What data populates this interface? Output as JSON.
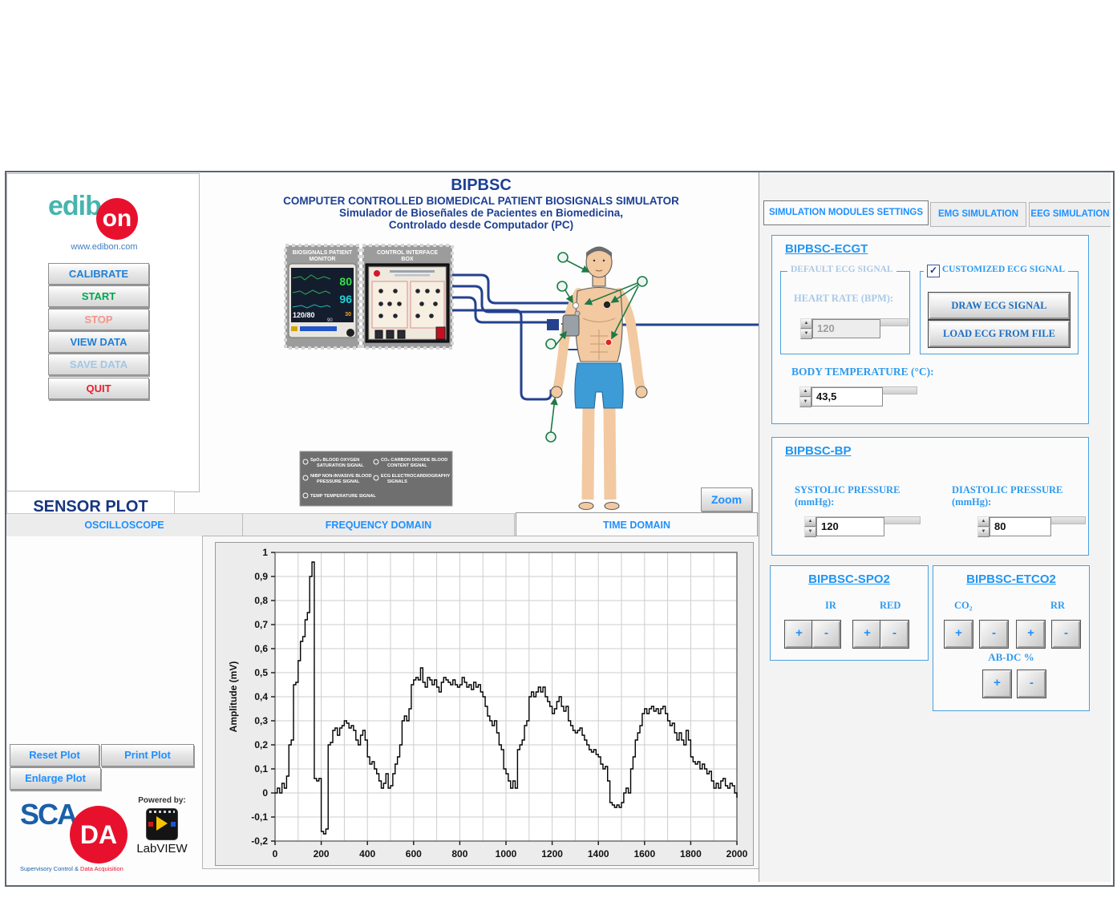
{
  "branding": {
    "logo_left": "edib",
    "logo_circle": "on",
    "website": "www.edibon.com"
  },
  "sidebar_buttons": [
    {
      "label": "CALIBRATE",
      "color": "#1e7fd6"
    },
    {
      "label": "START",
      "color": "#00a651"
    },
    {
      "label": "STOP",
      "color": "#f4948a"
    },
    {
      "label": "VIEW DATA",
      "color": "#1e7fd6"
    },
    {
      "label": "SAVE DATA",
      "color": "#9ec8e8"
    },
    {
      "label": "QUIT",
      "color": "#e8202a"
    }
  ],
  "header": {
    "title": "BIPBSC",
    "line1": "COMPUTER CONTROLLED BIOMEDICAL PATIENT BIOSIGNALS SIMULATOR",
    "line2": "Simulador de Bioseñales de Pacientes en Biomedicina,",
    "line3": "Controlado desde Computador (PC)"
  },
  "diagram": {
    "monitor_label_1": "BIOSIGNALS PATIENT",
    "monitor_label_2": "MONITOR",
    "box_label_1": "CONTROL INTERFACE",
    "box_label_2": "BOX",
    "monitor": {
      "hr": "80",
      "spo2": "96",
      "nibp": "120/80",
      "resp": "30",
      "small": "90"
    },
    "legend": [
      {
        "l1": "SpO₂  BLOOD OXYGEN",
        "l2": "SATURATION SIGNAL"
      },
      {
        "l1": "NIBP  NON-INVASIVE BLOOD",
        "l2": "PRESSURE SIGNAL"
      },
      {
        "l1": "TEMP  TEMPERATURE SIGNAL",
        "l2": ""
      },
      {
        "l1": "CO₂  CARBON DIOXIDE BLOOD",
        "l2": "CONTENT SIGNAL"
      },
      {
        "l1": "ECG  ELECTROCARDIOGRAPHY",
        "l2": "SIGNALS"
      }
    ],
    "zoom_button": "Zoom"
  },
  "plot_section": {
    "title": "SENSOR PLOT",
    "tabs": [
      {
        "label": "OSCILLOSCOPE"
      },
      {
        "label": "FREQUENCY DOMAIN"
      },
      {
        "label": "TIME DOMAIN"
      }
    ],
    "buttons": [
      {
        "label": "Reset Plot"
      },
      {
        "label": "Print Plot"
      },
      {
        "label": "Enlarge Plot"
      }
    ],
    "scada": {
      "sca": "SCA",
      "da": "DA",
      "sub_blue": "Supervisory Control &",
      "sub_red": " Data Acquisition"
    },
    "labview": {
      "powered": "Powered by:",
      "name": "LabVIEW"
    }
  },
  "chart_data": {
    "type": "line",
    "title": "",
    "xlabel": "Time (ms)",
    "ylabel": "Amplitude (mV)",
    "xlim": [
      0,
      2000
    ],
    "ylim": [
      -0.2,
      1
    ],
    "grid": true,
    "line_color": "#000000",
    "x_tick_labels": [
      "0",
      "200",
      "400",
      "600",
      "800",
      "1000",
      "1200",
      "1400",
      "1600",
      "1800",
      "2000"
    ],
    "y_tick_labels": [
      "1",
      "0,9",
      "0,8",
      "0,7",
      "0,6",
      "0,5",
      "0,4",
      "0,3",
      "0,2",
      "0,1",
      "0",
      "-0,1",
      "-0,2"
    ],
    "y_tick_values": [
      1,
      0.9,
      0.8,
      0.7,
      0.6,
      0.5,
      0.4,
      0.3,
      0.2,
      0.1,
      0,
      -0.1,
      -0.2
    ],
    "x_step": 10,
    "values": [
      0,
      0.02,
      0,
      0.04,
      0.02,
      0.07,
      0.2,
      0.22,
      0.45,
      0.46,
      0.55,
      0.63,
      0.65,
      0.72,
      0.75,
      0.9,
      0.96,
      0.06,
      0.05,
      0.06,
      -0.16,
      -0.17,
      -0.15,
      0.2,
      0.21,
      0.26,
      0.27,
      0.24,
      0.27,
      0.28,
      0.3,
      0.29,
      0.27,
      0.28,
      0.26,
      0.22,
      0.2,
      0.24,
      0.26,
      0.22,
      0.15,
      0.12,
      0.13,
      0.1,
      0.08,
      0.05,
      0.02,
      0.04,
      0.08,
      0.02,
      0.03,
      0.08,
      0.12,
      0.15,
      0.2,
      0.3,
      0.32,
      0.3,
      0.35,
      0.45,
      0.47,
      0.48,
      0.47,
      0.52,
      0.46,
      0.44,
      0.48,
      0.47,
      0.45,
      0.47,
      0.44,
      0.42,
      0.46,
      0.48,
      0.47,
      0.46,
      0.45,
      0.47,
      0.45,
      0.44,
      0.45,
      0.48,
      0.46,
      0.44,
      0.45,
      0.43,
      0.46,
      0.44,
      0.45,
      0.42,
      0.4,
      0.36,
      0.32,
      0.3,
      0.28,
      0.3,
      0.25,
      0.2,
      0.18,
      0.1,
      0.08,
      0.05,
      0.02,
      0.05,
      0.02,
      0.18,
      0.2,
      0.22,
      0.28,
      0.3,
      0.4,
      0.42,
      0.4,
      0.42,
      0.44,
      0.42,
      0.44,
      0.4,
      0.38,
      0.36,
      0.33,
      0.35,
      0.38,
      0.4,
      0.36,
      0.34,
      0.36,
      0.3,
      0.28,
      0.26,
      0.25,
      0.26,
      0.27,
      0.24,
      0.22,
      0.2,
      0.18,
      0.17,
      0.18,
      0.16,
      0.15,
      0.12,
      0.1,
      0.11,
      0.05,
      -0.04,
      -0.05,
      -0.06,
      -0.05,
      -0.06,
      -0.04,
      0,
      0.02,
      0,
      0.1,
      0.15,
      0.22,
      0.25,
      0.28,
      0.33,
      0.35,
      0.33,
      0.35,
      0.36,
      0.34,
      0.35,
      0.33,
      0.35,
      0.36,
      0.33,
      0.3,
      0.28,
      0.29,
      0.25,
      0.22,
      0.25,
      0.22,
      0.2,
      0.26,
      0.22,
      0.15,
      0.13,
      0.12,
      0.13,
      0.1,
      0.12,
      0.1,
      0.08,
      0.09,
      0.05,
      0.02,
      0.04,
      0.02,
      0.05,
      0.06,
      0.03,
      0.02,
      0.04,
      0.03,
      0,
      -0.02
    ]
  },
  "right_panel": {
    "tabs": [
      {
        "label": "SIMULATION MODULES SETTINGS"
      },
      {
        "label": "EMG SIMULATION"
      },
      {
        "label": "EEG SIMULATION"
      }
    ],
    "ecgt": {
      "title": "BIPBSC-ECGT",
      "default_group": "DEFAULT ECG SIGNAL",
      "heart_rate_label": "HEART RATE (BPM):",
      "heart_rate_value": "120",
      "custom_group": "CUSTOMIZED ECG SIGNAL",
      "check": "✓",
      "draw_button": "DRAW ECG SIGNAL",
      "load_button": "LOAD ECG FROM FILE",
      "body_temp_label": "BODY TEMPERATURE (°C):",
      "body_temp_value": "43,5"
    },
    "bp": {
      "title": "BIPBSC-BP",
      "systolic_label": "SYSTOLIC PRESSURE",
      "systolic_unit": "(mmHg):",
      "systolic_value": "120",
      "diastolic_label": "DIASTOLIC PRESSURE",
      "diastolic_unit": "(mmHg):",
      "diastolic_value": "80"
    },
    "spo2": {
      "title": "BIPBSC-SPO2",
      "ir_label": "IR",
      "red_label": "RED",
      "plus": "+",
      "minus": "-"
    },
    "etco2": {
      "title": "BIPBSC-ETCO2",
      "co2_label": "CO₂",
      "rr_label": "RR",
      "abdc_label": "AB-DC %",
      "plus": "+",
      "minus": "-"
    }
  }
}
